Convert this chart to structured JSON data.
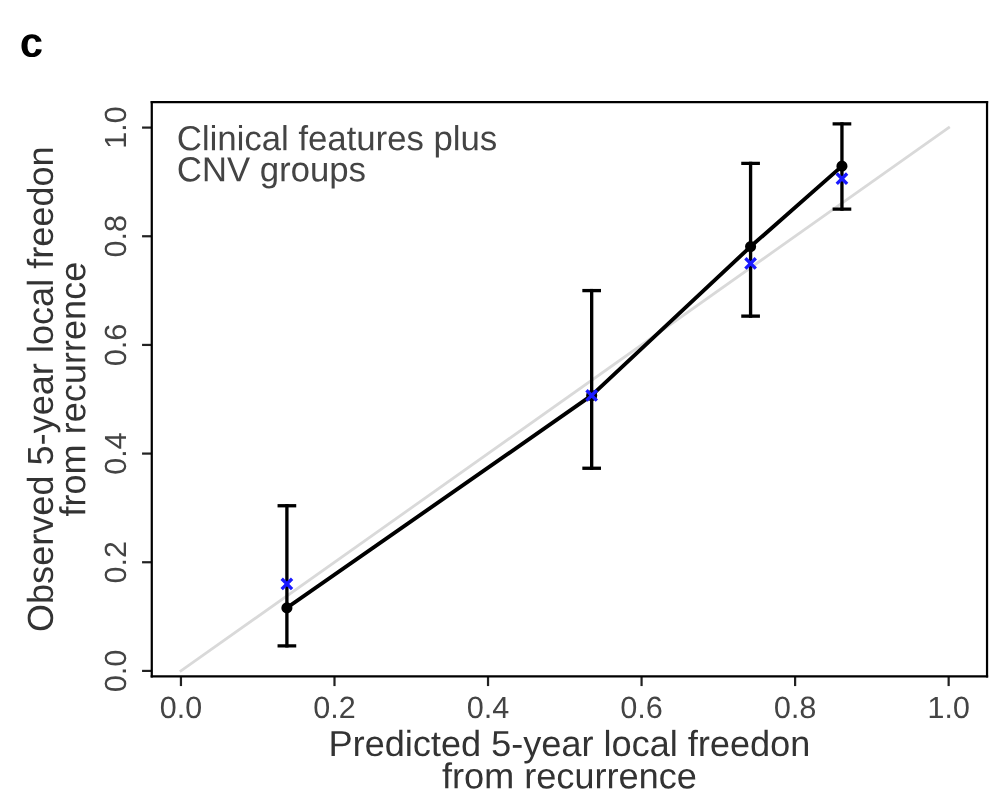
{
  "chart_data": {
    "type": "line",
    "xlabel": "Predicted 5-year local freedon\nfrom recurrence",
    "ylabel": "Observed 5-year local freedon\nfrom recurrence",
    "annotations": [
      "c",
      "Clinical features plus\nCNV groups"
    ],
    "x": [
      0.138,
      0.535,
      0.742,
      0.861
    ],
    "series": [
      {
        "color": "#d9d9d9",
        "x": [
          0,
          1
        ],
        "values": [
          0,
          1
        ],
        "marker": "none"
      },
      {
        "color": "#000000",
        "values": [
          0.116,
          0.507,
          0.781,
          0.929
        ],
        "marker": "circle",
        "errors": [
          [
            0.046,
            0.304
          ],
          [
            0.373,
            0.7
          ],
          [
            0.653,
            0.934
          ],
          [
            0.85,
            1.007
          ]
        ]
      },
      {
        "type": "scatter",
        "color": "#1a1aff",
        "values": [
          0.16,
          0.507,
          0.75,
          0.906
        ],
        "marker": "cross"
      }
    ],
    "xlim": [
      -0.038,
      1.05
    ],
    "ylim": [
      -0.01,
      1.047
    ],
    "xticks": [
      {
        "value": 0,
        "label": "0.0"
      },
      {
        "value": 0.2,
        "label": "0.2"
      },
      {
        "value": 0.4,
        "label": "0.4"
      },
      {
        "value": 0.6,
        "label": "0.6"
      },
      {
        "value": 0.8,
        "label": "0.8"
      },
      {
        "value": 1,
        "label": "1.0"
      }
    ],
    "yticks": [
      {
        "value": 0,
        "label": "0.0"
      },
      {
        "value": 0.2,
        "label": "0.2"
      },
      {
        "value": 0.4,
        "label": "0.4"
      },
      {
        "value": 0.6,
        "label": "0.6"
      },
      {
        "value": 0.8,
        "label": "0.8"
      },
      {
        "value": 1,
        "label": "1.0"
      }
    ],
    "grid": false,
    "legend": false
  }
}
